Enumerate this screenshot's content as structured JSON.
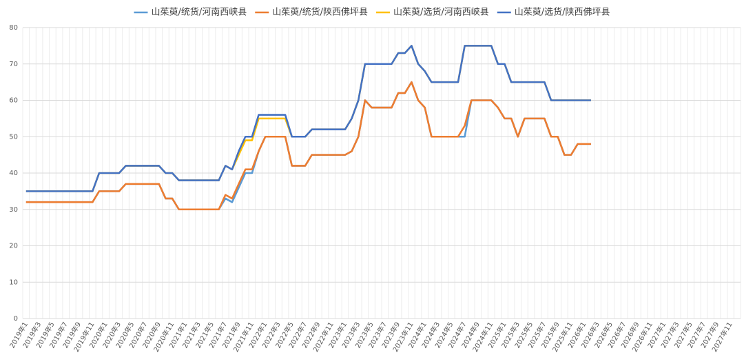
{
  "chart_data": {
    "type": "line",
    "categories": [
      "2019年1",
      null,
      "2019年3",
      null,
      "2019年5",
      null,
      "2019年7",
      null,
      "2019年9",
      null,
      "2019年11",
      null,
      "2020年1",
      null,
      "2020年3",
      null,
      "2020年5",
      null,
      "2020年7",
      null,
      "2020年9",
      null,
      "2020年11",
      null,
      "2021年1",
      null,
      "2021年3",
      null,
      "2021年5",
      null,
      "2021年7",
      null,
      "2021年9",
      null,
      "2021年11",
      null,
      "2022年1",
      null,
      "2022年3",
      null,
      "2022年5",
      null,
      "2022年7",
      null,
      "2022年9",
      null,
      "2022年11",
      null,
      "2023年1",
      null,
      "2023年3",
      null,
      "2023年5",
      null,
      "2023年7",
      null,
      "2023年9",
      null,
      "2023年11",
      null,
      "2024年1",
      null,
      "2024年3",
      null,
      "2024年5",
      null,
      "2024年7",
      null,
      "2024年9",
      null,
      "2024年11",
      null,
      "2025年1",
      null,
      "2025年3",
      null,
      "2025年5",
      null,
      "2025年7",
      null,
      "2025年9",
      null,
      "2025年11",
      null,
      "2026年1",
      null,
      "2026年3",
      null,
      "2026年5",
      null,
      "2026年7",
      null,
      "2026年9",
      null,
      "2026年11",
      null,
      "2027年1",
      null,
      "2027年3",
      null,
      "2027年5",
      null,
      "2027年7",
      null,
      "2027年9",
      null,
      "2027年11",
      null
    ],
    "series": [
      {
        "name": "山茱萸/统货/河南西峡县",
        "color": "#5b9bd5",
        "values": [
          32,
          32,
          32,
          32,
          32,
          32,
          32,
          32,
          32,
          32,
          32,
          35,
          35,
          35,
          35,
          37,
          37,
          37,
          37,
          37,
          37,
          33,
          33,
          30,
          30,
          30,
          30,
          30,
          30,
          30,
          33,
          32,
          36,
          40,
          40,
          46,
          50,
          50,
          50,
          50,
          42,
          42,
          42,
          45,
          45,
          45,
          45,
          45,
          45,
          46,
          50,
          60,
          58,
          58,
          58,
          58,
          62,
          62,
          65,
          60,
          58,
          50,
          50,
          50,
          50,
          50,
          50,
          60,
          60,
          60,
          60,
          58,
          55,
          55,
          50,
          55,
          55,
          55,
          55,
          50,
          50,
          45,
          45,
          48,
          48,
          48,
          null,
          null,
          null,
          null,
          null,
          null,
          null,
          null,
          null,
          null,
          null,
          null,
          null,
          null,
          null,
          null,
          null,
          null,
          null,
          null,
          null,
          null
        ]
      },
      {
        "name": "山茱萸/统货/陕西佛坪县",
        "color": "#ed7d31",
        "values": [
          32,
          32,
          32,
          32,
          32,
          32,
          32,
          32,
          32,
          32,
          32,
          35,
          35,
          35,
          35,
          37,
          37,
          37,
          37,
          37,
          37,
          33,
          33,
          30,
          30,
          30,
          30,
          30,
          30,
          30,
          34,
          33,
          37,
          41,
          41,
          46,
          50,
          50,
          50,
          50,
          42,
          42,
          42,
          45,
          45,
          45,
          45,
          45,
          45,
          46,
          50,
          60,
          58,
          58,
          58,
          58,
          62,
          62,
          65,
          60,
          58,
          50,
          50,
          50,
          50,
          50,
          53,
          60,
          60,
          60,
          60,
          58,
          55,
          55,
          50,
          55,
          55,
          55,
          55,
          50,
          50,
          45,
          45,
          48,
          48,
          48,
          null,
          null,
          null,
          null,
          null,
          null,
          null,
          null,
          null,
          null,
          null,
          null,
          null,
          null,
          null,
          null,
          null,
          null,
          null,
          null,
          null,
          null
        ]
      },
      {
        "name": "山茱萸/选货/河南西峡县",
        "color": "#ffc000",
        "values": [
          35,
          35,
          35,
          35,
          35,
          35,
          35,
          35,
          35,
          35,
          35,
          40,
          40,
          40,
          40,
          42,
          42,
          42,
          42,
          42,
          42,
          40,
          40,
          38,
          38,
          38,
          38,
          38,
          38,
          38,
          42,
          41,
          45,
          49,
          49,
          55,
          55,
          55,
          55,
          55,
          50,
          50,
          50,
          52,
          52,
          52,
          52,
          52,
          52,
          55,
          60,
          70,
          70,
          70,
          70,
          70,
          73,
          73,
          75,
          70,
          68,
          65,
          65,
          65,
          65,
          65,
          75,
          75,
          75,
          75,
          75,
          70,
          70,
          65,
          65,
          65,
          65,
          65,
          65,
          60,
          60,
          60,
          60,
          60,
          60,
          60,
          null,
          null,
          null,
          null,
          null,
          null,
          null,
          null,
          null,
          null,
          null,
          null,
          null,
          null,
          null,
          null,
          null,
          null,
          null,
          null,
          null,
          null
        ]
      },
      {
        "name": "山茱萸/选货/陕西佛坪县",
        "color": "#4472c4",
        "values": [
          35,
          35,
          35,
          35,
          35,
          35,
          35,
          35,
          35,
          35,
          35,
          40,
          40,
          40,
          40,
          42,
          42,
          42,
          42,
          42,
          42,
          40,
          40,
          38,
          38,
          38,
          38,
          38,
          38,
          38,
          42,
          41,
          46,
          50,
          50,
          56,
          56,
          56,
          56,
          56,
          50,
          50,
          50,
          52,
          52,
          52,
          52,
          52,
          52,
          55,
          60,
          70,
          70,
          70,
          70,
          70,
          73,
          73,
          75,
          70,
          68,
          65,
          65,
          65,
          65,
          65,
          75,
          75,
          75,
          75,
          75,
          70,
          70,
          65,
          65,
          65,
          65,
          65,
          65,
          60,
          60,
          60,
          60,
          60,
          60,
          60,
          null,
          null,
          null,
          null,
          null,
          null,
          null,
          null,
          null,
          null,
          null,
          null,
          null,
          null,
          null,
          null,
          null,
          null,
          null,
          null,
          null,
          null
        ]
      }
    ],
    "ylim": [
      0,
      80
    ],
    "yticks": [
      0,
      10,
      20,
      30,
      40,
      50,
      60,
      70,
      80
    ],
    "grid": true,
    "legend": "top"
  }
}
